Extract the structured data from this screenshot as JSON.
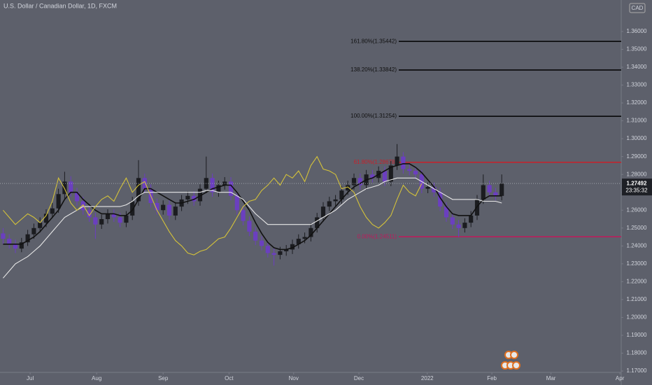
{
  "chart_data": {
    "type": "candlestick",
    "title": "U.S. Dollar / Canadian Dollar, 1D, FXCM",
    "currency": "CAD",
    "countdown": "23:35:32",
    "last_price": 1.27492,
    "up_color": "#1b1c20",
    "down_color": "#6b3fc0",
    "ohlc": [
      [
        1.247,
        1.25,
        1.241,
        1.244
      ],
      [
        1.244,
        1.2465,
        1.2385,
        1.241
      ],
      [
        1.241,
        1.2435,
        1.236,
        1.2385
      ],
      [
        1.2385,
        1.2445,
        1.2365,
        1.242
      ],
      [
        1.242,
        1.249,
        1.24,
        1.2465
      ],
      [
        1.2465,
        1.2525,
        1.244,
        1.25
      ],
      [
        1.25,
        1.256,
        1.2475,
        1.253
      ],
      [
        1.253,
        1.2605,
        1.2505,
        1.258
      ],
      [
        1.258,
        1.264,
        1.2555,
        1.261
      ],
      [
        1.261,
        1.272,
        1.2585,
        1.269
      ],
      [
        1.269,
        1.2815,
        1.2665,
        1.276
      ],
      [
        1.276,
        1.279,
        1.2675,
        1.27
      ],
      [
        1.27,
        1.2725,
        1.2625,
        1.265
      ],
      [
        1.265,
        1.2675,
        1.2575,
        1.26
      ],
      [
        1.26,
        1.2625,
        1.2535,
        1.256
      ],
      [
        1.256,
        1.2585,
        1.244,
        1.252
      ],
      [
        1.252,
        1.2575,
        1.2495,
        1.255
      ],
      [
        1.255,
        1.2605,
        1.2525,
        1.258
      ],
      [
        1.258,
        1.2605,
        1.2535,
        1.256
      ],
      [
        1.256,
        1.2585,
        1.2505,
        1.253
      ],
      [
        1.253,
        1.2595,
        1.2505,
        1.257
      ],
      [
        1.257,
        1.2675,
        1.2545,
        1.265
      ],
      [
        1.265,
        1.288,
        1.2625,
        1.278
      ],
      [
        1.278,
        1.2805,
        1.2695,
        1.272
      ],
      [
        1.272,
        1.2745,
        1.2615,
        1.264
      ],
      [
        1.264,
        1.2665,
        1.2575,
        1.26
      ],
      [
        1.26,
        1.2655,
        1.2575,
        1.263
      ],
      [
        1.263,
        1.2655,
        1.2545,
        1.257
      ],
      [
        1.257,
        1.2645,
        1.2545,
        1.262
      ],
      [
        1.262,
        1.2685,
        1.2595,
        1.266
      ],
      [
        1.266,
        1.2705,
        1.2635,
        1.268
      ],
      [
        1.268,
        1.2705,
        1.2625,
        1.265
      ],
      [
        1.265,
        1.2745,
        1.2625,
        1.272
      ],
      [
        1.272,
        1.29,
        1.2695,
        1.278
      ],
      [
        1.278,
        1.2805,
        1.2675,
        1.27
      ],
      [
        1.27,
        1.2765,
        1.2675,
        1.274
      ],
      [
        1.274,
        1.2785,
        1.2715,
        1.276
      ],
      [
        1.276,
        1.2785,
        1.2655,
        1.268
      ],
      [
        1.268,
        1.2705,
        1.2575,
        1.26
      ],
      [
        1.26,
        1.2625,
        1.2515,
        1.254
      ],
      [
        1.254,
        1.2565,
        1.2455,
        1.248
      ],
      [
        1.248,
        1.2505,
        1.2405,
        1.243
      ],
      [
        1.243,
        1.2455,
        1.2375,
        1.24
      ],
      [
        1.24,
        1.2425,
        1.2335,
        1.236
      ],
      [
        1.236,
        1.2385,
        1.229,
        1.235
      ],
      [
        1.235,
        1.2395,
        1.2325,
        1.237
      ],
      [
        1.237,
        1.2405,
        1.2345,
        1.238
      ],
      [
        1.238,
        1.2435,
        1.2355,
        1.241
      ],
      [
        1.241,
        1.2465,
        1.2385,
        1.244
      ],
      [
        1.244,
        1.2475,
        1.2415,
        1.245
      ],
      [
        1.245,
        1.2525,
        1.2425,
        1.25
      ],
      [
        1.25,
        1.2585,
        1.2475,
        1.256
      ],
      [
        1.256,
        1.2645,
        1.2535,
        1.262
      ],
      [
        1.262,
        1.2675,
        1.2595,
        1.265
      ],
      [
        1.265,
        1.2685,
        1.2625,
        1.266
      ],
      [
        1.266,
        1.2735,
        1.2635,
        1.271
      ],
      [
        1.271,
        1.2765,
        1.2685,
        1.274
      ],
      [
        1.274,
        1.2805,
        1.2715,
        1.278
      ],
      [
        1.278,
        1.2805,
        1.2715,
        1.274
      ],
      [
        1.274,
        1.2825,
        1.2715,
        1.28
      ],
      [
        1.28,
        1.2825,
        1.2755,
        1.278
      ],
      [
        1.278,
        1.2845,
        1.2755,
        1.282
      ],
      [
        1.282,
        1.2845,
        1.2735,
        1.276
      ],
      [
        1.276,
        1.2875,
        1.2735,
        1.285
      ],
      [
        1.285,
        1.297,
        1.2825,
        1.29
      ],
      [
        1.29,
        1.2925,
        1.2805,
        1.283
      ],
      [
        1.283,
        1.2855,
        1.2795,
        1.282
      ],
      [
        1.282,
        1.2845,
        1.2775,
        1.28
      ],
      [
        1.28,
        1.2825,
        1.2695,
        1.272
      ],
      [
        1.272,
        1.2755,
        1.2695,
        1.273
      ],
      [
        1.273,
        1.2755,
        1.2675,
        1.27
      ],
      [
        1.27,
        1.2725,
        1.2595,
        1.262
      ],
      [
        1.262,
        1.2645,
        1.2535,
        1.256
      ],
      [
        1.256,
        1.2585,
        1.2495,
        1.252
      ],
      [
        1.252,
        1.2545,
        1.245,
        1.25
      ],
      [
        1.25,
        1.2555,
        1.2475,
        1.253
      ],
      [
        1.253,
        1.2595,
        1.2505,
        1.257
      ],
      [
        1.257,
        1.2685,
        1.2545,
        1.266
      ],
      [
        1.266,
        1.28,
        1.2635,
        1.274
      ],
      [
        1.274,
        1.2765,
        1.2675,
        1.27
      ],
      [
        1.27,
        1.2725,
        1.2655,
        1.268
      ],
      [
        1.268,
        1.28,
        1.2655,
        1.27492
      ]
    ],
    "series": [
      {
        "color": "#111111",
        "values": [
          1.241,
          1.241,
          1.241,
          1.241,
          1.243,
          1.245,
          1.248,
          1.252,
          1.256,
          1.26,
          1.266,
          1.27,
          1.27,
          1.266,
          1.263,
          1.26,
          1.258,
          1.258,
          1.258,
          1.257,
          1.257,
          1.26,
          1.266,
          1.272,
          1.272,
          1.27,
          1.268,
          1.266,
          1.264,
          1.264,
          1.265,
          1.266,
          1.268,
          1.27,
          1.272,
          1.273,
          1.274,
          1.274,
          1.27,
          1.265,
          1.26,
          1.253,
          1.247,
          1.242,
          1.239,
          1.238,
          1.238,
          1.239,
          1.241,
          1.243,
          1.246,
          1.25,
          1.254,
          1.258,
          1.262,
          1.266,
          1.27,
          1.273,
          1.275,
          1.277,
          1.278,
          1.28,
          1.282,
          1.284,
          1.285,
          1.286,
          1.286,
          1.284,
          1.281,
          1.277,
          1.273,
          1.267,
          1.262,
          1.258,
          1.257,
          1.257,
          1.257,
          1.262,
          1.266,
          1.268,
          1.268,
          1.268
        ]
      },
      {
        "color": "#e8e8e8",
        "values": [
          1.222,
          1.226,
          1.23,
          1.232,
          1.234,
          1.237,
          1.24,
          1.244,
          1.248,
          1.252,
          1.256,
          1.258,
          1.26,
          1.262,
          1.262,
          1.262,
          1.262,
          1.262,
          1.262,
          1.262,
          1.263,
          1.265,
          1.268,
          1.27,
          1.27,
          1.27,
          1.27,
          1.27,
          1.27,
          1.27,
          1.27,
          1.27,
          1.27,
          1.271,
          1.271,
          1.27,
          1.27,
          1.27,
          1.268,
          1.266,
          1.262,
          1.258,
          1.255,
          1.252,
          1.252,
          1.252,
          1.252,
          1.252,
          1.252,
          1.252,
          1.252,
          1.254,
          1.256,
          1.258,
          1.26,
          1.263,
          1.266,
          1.268,
          1.27,
          1.272,
          1.273,
          1.274,
          1.276,
          1.277,
          1.278,
          1.278,
          1.278,
          1.278,
          1.276,
          1.274,
          1.272,
          1.27,
          1.268,
          1.266,
          1.266,
          1.266,
          1.266,
          1.266,
          1.265,
          1.265,
          1.265,
          1.264
        ]
      },
      {
        "color": "#d4c23a",
        "values": [
          1.26,
          1.256,
          1.252,
          1.255,
          1.258,
          1.256,
          1.253,
          1.257,
          1.265,
          1.278,
          1.272,
          1.264,
          1.26,
          1.263,
          1.257,
          1.262,
          1.266,
          1.268,
          1.265,
          1.272,
          1.278,
          1.27,
          1.274,
          1.276,
          1.268,
          1.26,
          1.254,
          1.248,
          1.243,
          1.24,
          1.236,
          1.235,
          1.237,
          1.238,
          1.241,
          1.244,
          1.245,
          1.25,
          1.256,
          1.262,
          1.265,
          1.266,
          1.271,
          1.274,
          1.278,
          1.274,
          1.28,
          1.278,
          1.282,
          1.276,
          1.285,
          1.29,
          1.283,
          1.282,
          1.28,
          1.272,
          1.273,
          1.27,
          1.262,
          1.256,
          1.252,
          1.25,
          1.253,
          1.257,
          1.266,
          1.274,
          1.27,
          1.268,
          1.2749,
          null,
          null,
          null,
          null,
          null,
          null,
          null,
          null,
          null,
          null,
          null,
          null,
          null
        ]
      }
    ],
    "levels": [
      {
        "label": "161.80%(1.35442)",
        "value": 1.35442,
        "color": "#000000"
      },
      {
        "label": "138.20%(1.33842)",
        "value": 1.33842,
        "color": "#000000"
      },
      {
        "label": "100.00%(1.31254)",
        "value": 1.31254,
        "color": "#000000"
      },
      {
        "label": "61.80%(1.28678)",
        "value": 1.28678,
        "color": "#c8202a"
      },
      {
        "label": "0.00%(1.24511)",
        "value": 1.24511,
        "color": "#c2185b"
      }
    ],
    "xlim": [
      -0.5,
      100.41
    ],
    "xticks": [
      {
        "value": 4.4,
        "label": "Jul"
      },
      {
        "value": 15.2,
        "label": "Aug"
      },
      {
        "value": 26.0,
        "label": "Sep"
      },
      {
        "value": 36.7,
        "label": "Oct"
      },
      {
        "value": 47.2,
        "label": "Nov"
      },
      {
        "value": 57.8,
        "label": "Dec"
      },
      {
        "value": 68.9,
        "label": "2022"
      },
      {
        "value": 79.4,
        "label": "Feb"
      },
      {
        "value": 89.0,
        "label": "Mar"
      },
      {
        "value": 100.2,
        "label": "Apr"
      }
    ],
    "ylim": [
      1.1661,
      1.3776
    ],
    "yticks": [
      {
        "value": 1.17,
        "label": "1.17000"
      },
      {
        "value": 1.18,
        "label": "1.18000"
      },
      {
        "value": 1.19,
        "label": "1.19000"
      },
      {
        "value": 1.2,
        "label": "1.20000"
      },
      {
        "value": 1.21,
        "label": "1.21000"
      },
      {
        "value": 1.22,
        "label": "1.22000"
      },
      {
        "value": 1.23,
        "label": "1.23000"
      },
      {
        "value": 1.24,
        "label": "1.24000"
      },
      {
        "value": 1.25,
        "label": "1.25000"
      },
      {
        "value": 1.26,
        "label": "1.26000"
      },
      {
        "value": 1.27,
        "label": "1.27000"
      },
      {
        "value": 1.28,
        "label": "1.28000"
      },
      {
        "value": 1.29,
        "label": "1.29000"
      },
      {
        "value": 1.3,
        "label": "1.30000"
      },
      {
        "value": 1.31,
        "label": "1.31000"
      },
      {
        "value": 1.32,
        "label": "1.32000"
      },
      {
        "value": 1.33,
        "label": "1.33000"
      },
      {
        "value": 1.34,
        "label": "1.34000"
      },
      {
        "value": 1.35,
        "label": "1.35000"
      },
      {
        "value": 1.36,
        "label": "1.36000"
      }
    ]
  }
}
